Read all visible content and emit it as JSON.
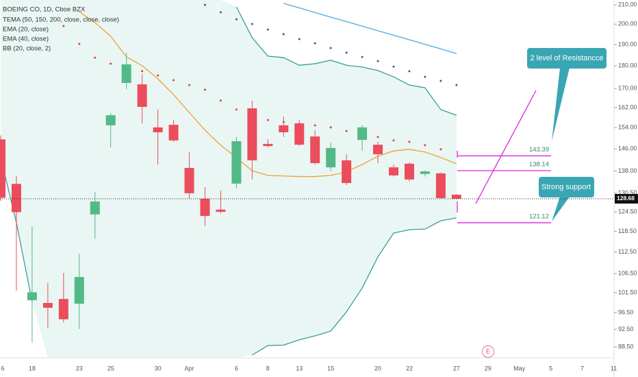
{
  "chart_data": {
    "type": "candlestick",
    "title": "BOEING CO, 1D, Cboe BZX",
    "categories": [
      "6",
      null,
      "18",
      null,
      null,
      "23",
      null,
      "25",
      null,
      null,
      "30",
      null,
      "Apr",
      null,
      null,
      "6",
      null,
      "8",
      null,
      "13",
      null,
      "15",
      null,
      null,
      "20",
      null,
      "22",
      null,
      null,
      "27",
      null,
      "29",
      null,
      "May",
      null,
      "5",
      null,
      "7",
      null,
      "11"
    ],
    "open": [
      149.5,
      133.6,
      99.6,
      98.9,
      99.9,
      98.7,
      123.7,
      154.9,
      172.4,
      171.8,
      154.1,
      155.1,
      139.1,
      128.7,
      125.2,
      133.7,
      161.7,
      147.8,
      154.9,
      155.7,
      150.6,
      139.3,
      141.8,
      149.3,
      147.5,
      139.3,
      140.6,
      137.0,
      137.2,
      130.0,
      null,
      null,
      null,
      null,
      null,
      null,
      null,
      null,
      null,
      null
    ],
    "high": [
      151,
      136.4,
      120,
      104,
      106.7,
      112.0,
      130.9,
      159.7,
      186.1,
      176.3,
      161.2,
      157.0,
      144.8,
      132.5,
      131.4,
      150.4,
      164.8,
      149.6,
      158.4,
      157.0,
      153.0,
      148.3,
      144.0,
      154.9,
      148.6,
      140.3,
      141.0,
      138.2,
      137.5,
      130.2,
      null,
      null,
      null,
      null,
      null,
      null,
      null,
      null,
      null,
      null
    ],
    "low": [
      128,
      102,
      89.5,
      92.9,
      94.2,
      92.6,
      116.3,
      146.5,
      169.7,
      155.7,
      140.3,
      148.6,
      128.7,
      120.1,
      123.9,
      132.1,
      135.1,
      146.5,
      150.4,
      147.0,
      140.3,
      137.9,
      133.2,
      145.2,
      140.8,
      136.1,
      134.4,
      136.1,
      128.7,
      128.5,
      null,
      null,
      null,
      null,
      null,
      null,
      null,
      null,
      null,
      null
    ],
    "close": [
      129,
      124.4,
      101.6,
      97.7,
      94.9,
      105.6,
      127.8,
      158.9,
      180.7,
      162.3,
      152.2,
      149.1,
      130.5,
      123.2,
      124.5,
      148.8,
      141.8,
      147.0,
      152.2,
      147.5,
      140.8,
      146.3,
      133.9,
      154.1,
      144.0,
      136.5,
      135.1,
      137.9,
      128.9,
      128.68,
      null,
      null,
      null,
      null,
      null,
      null,
      null,
      null,
      null,
      null
    ],
    "up_color": "#53b987",
    "down_color": "#eb4d5c",
    "indicators": [
      {
        "name": "TEMA (50, 150, 200, close, close, close)",
        "plots": [
          {
            "style": "line",
            "color": "#4fa8e0",
            "values": [
              null,
              null,
              null,
              null,
              null,
              null,
              null,
              null,
              null,
              null,
              null,
              null,
              null,
              null,
              null,
              null,
              null,
              null,
              210.8,
              208.4,
              206.0,
              203.6,
              201.3,
              199.0,
              196.7,
              194.5,
              192.3,
              190.1,
              187.9,
              185.7,
              null,
              null,
              null,
              null,
              null,
              null,
              null,
              null,
              null,
              null
            ]
          },
          {
            "style": "dots",
            "color": "#2a5fa8",
            "values": [
              null,
              null,
              null,
              null,
              null,
              null,
              null,
              null,
              null,
              null,
              null,
              null,
              null,
              210.0,
              206.1,
              202.5,
              200.1,
              197.3,
              195.0,
              192.6,
              190.6,
              188.3,
              186.1,
              184.1,
              182.2,
              179.7,
              177.6,
              175.1,
              173.3,
              171.5,
              null,
              null,
              null,
              null,
              null,
              null,
              null,
              null,
              null,
              null
            ]
          }
        ]
      },
      {
        "name": "EMA (20, close)",
        "plots": [
          {
            "style": "line",
            "color": "#f0a030",
            "values": [
              null,
              null,
              null,
              null,
              null,
              206.4,
              200.8,
              194.0,
              184.1,
              180.1,
              174.2,
              167.4,
              160.0,
              153.0,
              147.3,
              142.8,
              138.1,
              136.5,
              136.3,
              136.1,
              136.1,
              136.5,
              137.7,
              140.3,
              143.3,
              145.2,
              145.8,
              144.8,
              142.8,
              140.6,
              null,
              null,
              null,
              null,
              null,
              null,
              null,
              null,
              null,
              null
            ]
          }
        ]
      },
      {
        "name": "EMA (40, close)",
        "plots": [
          {
            "style": "dots",
            "color": "#e04040",
            "values": [
              null,
              null,
              null,
              null,
              199.1,
              190.3,
              183.8,
              181.0,
              179.1,
              177.6,
              175.7,
              173.6,
              171.5,
              169.5,
              164.9,
              161.2,
              158.4,
              157.0,
              156.2,
              155.4,
              154.9,
              154.1,
              152.7,
              151.9,
              150.4,
              149.1,
              148.6,
              147.3,
              145.8,
              null,
              null,
              null,
              null,
              null,
              null,
              null,
              null,
              null,
              null,
              null
            ]
          }
        ]
      },
      {
        "name": "BB (20, close, 2)",
        "band_fill": "#e9f6f4",
        "plots": [
          {
            "style": "line",
            "color": "#3a9e94",
            "values": [
              null,
              null,
              null,
              null,
              null,
              null,
              null,
              null,
              null,
              null,
              null,
              null,
              null,
              null,
              null,
              208.9,
              193.3,
              184.5,
              183.8,
              180.3,
              181.0,
              182.6,
              180.3,
              179.5,
              177.9,
              175.1,
              171.5,
              170.3,
              161.2,
              158.9,
              null,
              null,
              null,
              null,
              null,
              null,
              null,
              null,
              null,
              null
            ]
          },
          {
            "style": "line",
            "color": "#3a9e94",
            "values": [
              142.8,
              121.1,
              99.2,
              null,
              null,
              null,
              null,
              null,
              null,
              null,
              null,
              null,
              null,
              null,
              null,
              null,
              86.7,
              88.8,
              88.9,
              90.1,
              91.0,
              92.1,
              96.7,
              102.7,
              111.1,
              118.0,
              119.0,
              119.2,
              121.7,
              122.6,
              null,
              null,
              null,
              null,
              null,
              null,
              null,
              null,
              null,
              null
            ]
          }
        ]
      }
    ],
    "ylim": [
      86.1,
      212.6
    ],
    "log_scale": true,
    "yticks": [
      {
        "value": 210,
        "label": "210.00"
      },
      {
        "value": 200,
        "label": "200.00"
      },
      {
        "value": 190,
        "label": "190.00"
      },
      {
        "value": 180,
        "label": "180.00"
      },
      {
        "value": 170,
        "label": "170.00"
      },
      {
        "value": 162,
        "label": "162.00"
      },
      {
        "value": 154,
        "label": "154.00"
      },
      {
        "value": 146,
        "label": "146.00"
      },
      {
        "value": 138,
        "label": "138.00"
      },
      {
        "value": 130.5,
        "label": "130.50"
      },
      {
        "value": 124.5,
        "label": "124.50"
      },
      {
        "value": 118.5,
        "label": "118.50"
      },
      {
        "value": 112.5,
        "label": "112.50"
      },
      {
        "value": 106.5,
        "label": "106.50"
      },
      {
        "value": 101.5,
        "label": "101.50"
      },
      {
        "value": 96.5,
        "label": "96.50"
      },
      {
        "value": 92.5,
        "label": "92.50"
      },
      {
        "value": 88.5,
        "label": "88.50"
      }
    ],
    "last_price": 128.68,
    "levels": [
      143.39,
      138.14,
      121.12
    ],
    "level_color": "#e020e0",
    "annotations": [
      "2 level of Resistancce",
      "Strong support"
    ],
    "earnings_marker": "E"
  }
}
